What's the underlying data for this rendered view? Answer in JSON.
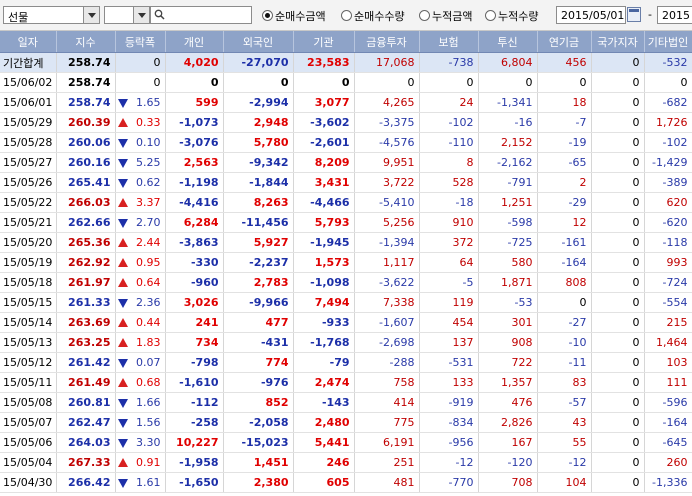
{
  "toolbar": {
    "market_select": "선물",
    "code_search_placeholder": "",
    "radios": [
      {
        "label": "순매수금액",
        "checked": true
      },
      {
        "label": "순매수수량",
        "checked": false
      },
      {
        "label": "누적금액",
        "checked": false
      },
      {
        "label": "누적수량",
        "checked": false
      }
    ],
    "date_from": "2015/05/01",
    "separator": "-",
    "date_to": "2015"
  },
  "table": {
    "headers": [
      "일자",
      "지수",
      "등락폭",
      "개인",
      "외국인",
      "기관",
      "금융투자",
      "보험",
      "투신",
      "연기금",
      "국가지자",
      "기타법인"
    ],
    "total": {
      "date": "기간합계",
      "index": "258.74",
      "change": "0",
      "dir": "",
      "personal": "4,020",
      "foreign": "-27,070",
      "inst": "23,583",
      "fininv": "17,068",
      "insur": "-738",
      "trust": "6,804",
      "pension": "456",
      "govt": "0",
      "other": "-532"
    },
    "rows": [
      {
        "date": "15/06/02",
        "index": "258.74",
        "change": "0",
        "dir": "",
        "personal": "0",
        "foreign": "0",
        "inst": "0",
        "fininv": "0",
        "insur": "0",
        "trust": "0",
        "pension": "0",
        "govt": "0",
        "other": "0"
      },
      {
        "date": "15/06/01",
        "index": "258.74",
        "change": "1.65",
        "dir": "down",
        "personal": "599",
        "foreign": "-2,994",
        "inst": "3,077",
        "fininv": "4,265",
        "insur": "24",
        "trust": "-1,341",
        "pension": "18",
        "govt": "0",
        "other": "-682"
      },
      {
        "date": "15/05/29",
        "index": "260.39",
        "change": "0.33",
        "dir": "up",
        "personal": "-1,073",
        "foreign": "2,948",
        "inst": "-3,602",
        "fininv": "-3,375",
        "insur": "-102",
        "trust": "-16",
        "pension": "-7",
        "govt": "0",
        "other": "1,726"
      },
      {
        "date": "15/05/28",
        "index": "260.06",
        "change": "0.10",
        "dir": "down",
        "personal": "-3,076",
        "foreign": "5,780",
        "inst": "-2,601",
        "fininv": "-4,576",
        "insur": "-110",
        "trust": "2,152",
        "pension": "-19",
        "govt": "0",
        "other": "-102"
      },
      {
        "date": "15/05/27",
        "index": "260.16",
        "change": "5.25",
        "dir": "down",
        "personal": "2,563",
        "foreign": "-9,342",
        "inst": "8,209",
        "fininv": "9,951",
        "insur": "8",
        "trust": "-2,162",
        "pension": "-65",
        "govt": "0",
        "other": "-1,429"
      },
      {
        "date": "15/05/26",
        "index": "265.41",
        "change": "0.62",
        "dir": "down",
        "personal": "-1,198",
        "foreign": "-1,844",
        "inst": "3,431",
        "fininv": "3,722",
        "insur": "528",
        "trust": "-791",
        "pension": "2",
        "govt": "0",
        "other": "-389"
      },
      {
        "date": "15/05/22",
        "index": "266.03",
        "change": "3.37",
        "dir": "up",
        "personal": "-4,416",
        "foreign": "8,263",
        "inst": "-4,466",
        "fininv": "-5,410",
        "insur": "-18",
        "trust": "1,251",
        "pension": "-29",
        "govt": "0",
        "other": "620"
      },
      {
        "date": "15/05/21",
        "index": "262.66",
        "change": "2.70",
        "dir": "down",
        "personal": "6,284",
        "foreign": "-11,456",
        "inst": "5,793",
        "fininv": "5,256",
        "insur": "910",
        "trust": "-598",
        "pension": "12",
        "govt": "0",
        "other": "-620"
      },
      {
        "date": "15/05/20",
        "index": "265.36",
        "change": "2.44",
        "dir": "up",
        "personal": "-3,863",
        "foreign": "5,927",
        "inst": "-1,945",
        "fininv": "-1,394",
        "insur": "372",
        "trust": "-725",
        "pension": "-161",
        "govt": "0",
        "other": "-118"
      },
      {
        "date": "15/05/19",
        "index": "262.92",
        "change": "0.95",
        "dir": "up",
        "personal": "-330",
        "foreign": "-2,237",
        "inst": "1,573",
        "fininv": "1,117",
        "insur": "64",
        "trust": "580",
        "pension": "-164",
        "govt": "0",
        "other": "993"
      },
      {
        "date": "15/05/18",
        "index": "261.97",
        "change": "0.64",
        "dir": "up",
        "personal": "-960",
        "foreign": "2,783",
        "inst": "-1,098",
        "fininv": "-3,622",
        "insur": "-5",
        "trust": "1,871",
        "pension": "808",
        "govt": "0",
        "other": "-724"
      },
      {
        "date": "15/05/15",
        "index": "261.33",
        "change": "2.36",
        "dir": "down",
        "personal": "3,026",
        "foreign": "-9,966",
        "inst": "7,494",
        "fininv": "7,338",
        "insur": "119",
        "trust": "-53",
        "pension": "0",
        "govt": "0",
        "other": "-554"
      },
      {
        "date": "15/05/14",
        "index": "263.69",
        "change": "0.44",
        "dir": "up",
        "personal": "241",
        "foreign": "477",
        "inst": "-933",
        "fininv": "-1,607",
        "insur": "454",
        "trust": "301",
        "pension": "-27",
        "govt": "0",
        "other": "215"
      },
      {
        "date": "15/05/13",
        "index": "263.25",
        "change": "1.83",
        "dir": "up",
        "personal": "734",
        "foreign": "-431",
        "inst": "-1,768",
        "fininv": "-2,698",
        "insur": "137",
        "trust": "908",
        "pension": "-10",
        "govt": "0",
        "other": "1,464"
      },
      {
        "date": "15/05/12",
        "index": "261.42",
        "change": "0.07",
        "dir": "down",
        "personal": "-798",
        "foreign": "774",
        "inst": "-79",
        "fininv": "-288",
        "insur": "-531",
        "trust": "722",
        "pension": "-11",
        "govt": "0",
        "other": "103"
      },
      {
        "date": "15/05/11",
        "index": "261.49",
        "change": "0.68",
        "dir": "up",
        "personal": "-1,610",
        "foreign": "-976",
        "inst": "2,474",
        "fininv": "758",
        "insur": "133",
        "trust": "1,357",
        "pension": "83",
        "govt": "0",
        "other": "111"
      },
      {
        "date": "15/05/08",
        "index": "260.81",
        "change": "1.66",
        "dir": "down",
        "personal": "-112",
        "foreign": "852",
        "inst": "-143",
        "fininv": "414",
        "insur": "-919",
        "trust": "476",
        "pension": "-57",
        "govt": "0",
        "other": "-596"
      },
      {
        "date": "15/05/07",
        "index": "262.47",
        "change": "1.56",
        "dir": "down",
        "personal": "-258",
        "foreign": "-2,058",
        "inst": "2,480",
        "fininv": "775",
        "insur": "-834",
        "trust": "2,826",
        "pension": "43",
        "govt": "0",
        "other": "-164"
      },
      {
        "date": "15/05/06",
        "index": "264.03",
        "change": "3.30",
        "dir": "down",
        "personal": "10,227",
        "foreign": "-15,023",
        "inst": "5,441",
        "fininv": "6,191",
        "insur": "-956",
        "trust": "167",
        "pension": "55",
        "govt": "0",
        "other": "-645"
      },
      {
        "date": "15/05/04",
        "index": "267.33",
        "change": "0.91",
        "dir": "up",
        "personal": "-1,958",
        "foreign": "1,451",
        "inst": "246",
        "fininv": "251",
        "insur": "-12",
        "trust": "-120",
        "pension": "-12",
        "govt": "0",
        "other": "260"
      },
      {
        "date": "15/04/30",
        "index": "266.42",
        "change": "1.61",
        "dir": "down",
        "personal": "-1,650",
        "foreign": "2,380",
        "inst": "605",
        "fininv": "481",
        "insur": "-770",
        "trust": "708",
        "pension": "104",
        "govt": "0",
        "other": "-1,336"
      }
    ]
  },
  "colors": {
    "header_bg": "#8ea3c8",
    "up": "#e00000",
    "down": "#1c2fa8",
    "total_bg": "#dce6f5"
  }
}
